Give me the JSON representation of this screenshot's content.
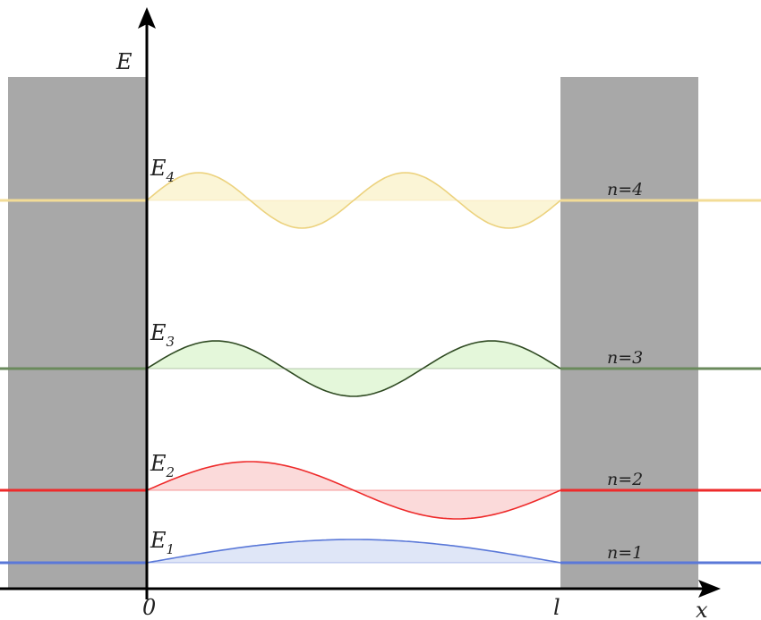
{
  "axes": {
    "y_label": "E",
    "x_label": "x",
    "origin_label": "0",
    "well_width_label": "l"
  },
  "levels": [
    {
      "n": 1,
      "energy_main": "E",
      "energy_sub": "1",
      "state_label": "n=1",
      "color": "#5a78d8",
      "fill": "#dfe6f7"
    },
    {
      "n": 2,
      "energy_main": "E",
      "energy_sub": "2",
      "state_label": "n=2",
      "color": "#ee2a2a",
      "fill": "#fbdada"
    },
    {
      "n": 3,
      "energy_main": "E",
      "energy_sub": "3",
      "state_label": "n=3",
      "color": "#6a8a5c",
      "fill": "#e4f7da",
      "wave_color": "#2f4a22"
    },
    {
      "n": 4,
      "energy_main": "E",
      "energy_sub": "4",
      "state_label": "n=4",
      "color": "#f3dc96",
      "fill": "#fbf5d6",
      "wave_color": "#ecd27e"
    }
  ],
  "colors": {
    "wall": "#a8a8a8",
    "axis": "#000000"
  }
}
